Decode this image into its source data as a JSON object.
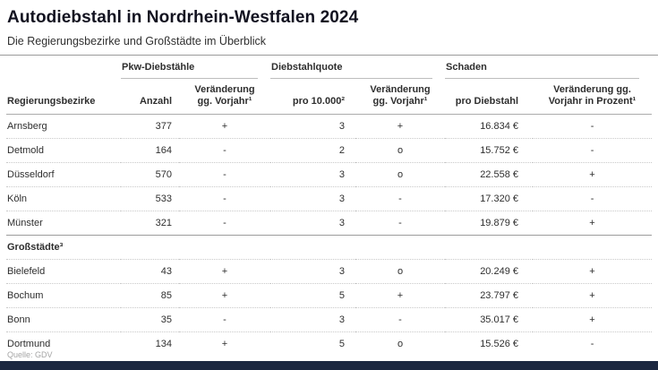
{
  "header": {
    "title": "Autodiebstahl in Nordrhein-Westfalen 2024",
    "subtitle": "Die Regierungsbezirke und Großstädte im Überblick"
  },
  "footer": {
    "source": "Quelle: GDV"
  },
  "colors": {
    "title": "#121220",
    "bottom_bar": "#1b2740",
    "separator": "#bdbdbd",
    "muted": "#a5a5a5"
  },
  "chart_data": {
    "type": "table",
    "title": "Autodiebstahl in Nordrhein-Westfalen 2024",
    "subtitle": "Die Regierungsbezirke und Großstädte im Überblick",
    "column_groups": [
      {
        "label": "Pkw-Diebstähle",
        "cols": 2
      },
      {
        "label": "Diebstahlquote",
        "cols": 2
      },
      {
        "label": "Schaden",
        "cols": 2
      }
    ],
    "columns": [
      "Regierungsbezirke",
      "Anzahl",
      "Veränderung\ngg. Vorjahr¹",
      "pro 10.000²",
      "Veränderung\ngg. Vorjahr¹",
      "pro Diebstahl",
      "Veränderung gg.\nVorjahr in Prozent¹"
    ],
    "sections": [
      {
        "label": null,
        "rows": [
          [
            "Arnsberg",
            "377",
            "+",
            "3",
            "+",
            "16.834 €",
            "-"
          ],
          [
            "Detmold",
            "164",
            "-",
            "2",
            "o",
            "15.752 €",
            "-"
          ],
          [
            "Düsseldorf",
            "570",
            "-",
            "3",
            "o",
            "22.558 €",
            "+"
          ],
          [
            "Köln",
            "533",
            "-",
            "3",
            "-",
            "17.320 €",
            "-"
          ],
          [
            "Münster",
            "321",
            "-",
            "3",
            "-",
            "19.879 €",
            "+"
          ]
        ]
      },
      {
        "label": "Großstädte³",
        "rows": [
          [
            "Bielefeld",
            "43",
            "+",
            "3",
            "o",
            "20.249 €",
            "+"
          ],
          [
            "Bochum",
            "85",
            "+",
            "5",
            "+",
            "23.797 €",
            "+"
          ],
          [
            "Bonn",
            "35",
            "-",
            "3",
            "-",
            "35.017 €",
            "+"
          ],
          [
            "Dortmund",
            "134",
            "+",
            "5",
            "o",
            "15.526 €",
            "-"
          ]
        ]
      }
    ],
    "source": "Quelle: GDV"
  }
}
